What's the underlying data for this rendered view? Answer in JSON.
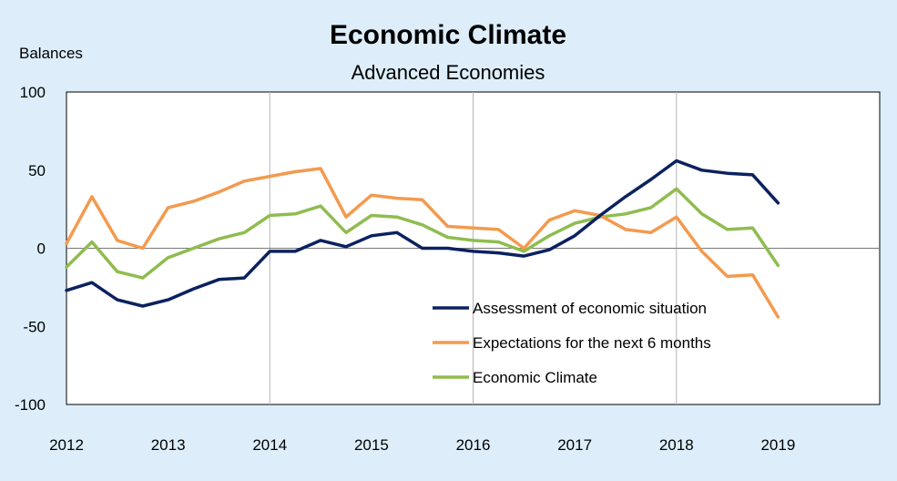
{
  "chart_data": {
    "type": "line",
    "title": "Economic Climate",
    "subtitle": "Advanced Economies",
    "ylabel": "Balances",
    "xlabel": "",
    "ylim": [
      -100,
      100
    ],
    "yticks": [
      100,
      50,
      0,
      -50,
      -100
    ],
    "xlim": [
      2012,
      2020
    ],
    "xticks": [
      "2012",
      "2013",
      "2014",
      "2015",
      "2016",
      "2017",
      "2018",
      "2019"
    ],
    "grid": {
      "vertical_at": [
        2014,
        2016,
        2018
      ],
      "zero_line": true
    },
    "legend_position": "bottom-right inside plot",
    "x": [
      2012.0,
      2012.25,
      2012.5,
      2012.75,
      2013.0,
      2013.25,
      2013.5,
      2013.75,
      2014.0,
      2014.25,
      2014.5,
      2014.75,
      2015.0,
      2015.25,
      2015.5,
      2015.75,
      2016.0,
      2016.25,
      2016.5,
      2016.75,
      2017.0,
      2017.25,
      2017.5,
      2017.75,
      2018.0,
      2018.25,
      2018.5,
      2018.75,
      2019.0
    ],
    "series": [
      {
        "name": "Assessment of  economic situation",
        "color": "#0b2160",
        "values": [
          -27,
          -22,
          -33,
          -37,
          -33,
          -26,
          -20,
          -19,
          -2,
          -2,
          5,
          1,
          8,
          10,
          0,
          0,
          -2,
          -3,
          -5,
          -1,
          8,
          21,
          33,
          44,
          56,
          50,
          48,
          47,
          29
        ]
      },
      {
        "name": "Expectations for the next 6 months",
        "color": "#f39a4e",
        "values": [
          3,
          33,
          5,
          0,
          26,
          30,
          36,
          43,
          46,
          49,
          51,
          20,
          34,
          32,
          31,
          14,
          13,
          12,
          0,
          18,
          24,
          21,
          12,
          10,
          20,
          -2,
          -18,
          -17,
          -44
        ]
      },
      {
        "name": "Economic Climate",
        "color": "#8fbc4f",
        "values": [
          -12,
          4,
          -15,
          -19,
          -6,
          0,
          6,
          10,
          21,
          22,
          27,
          10,
          21,
          20,
          15,
          7,
          5,
          4,
          -2,
          8,
          16,
          20,
          22,
          26,
          38,
          22,
          12,
          13,
          -11
        ]
      }
    ]
  }
}
